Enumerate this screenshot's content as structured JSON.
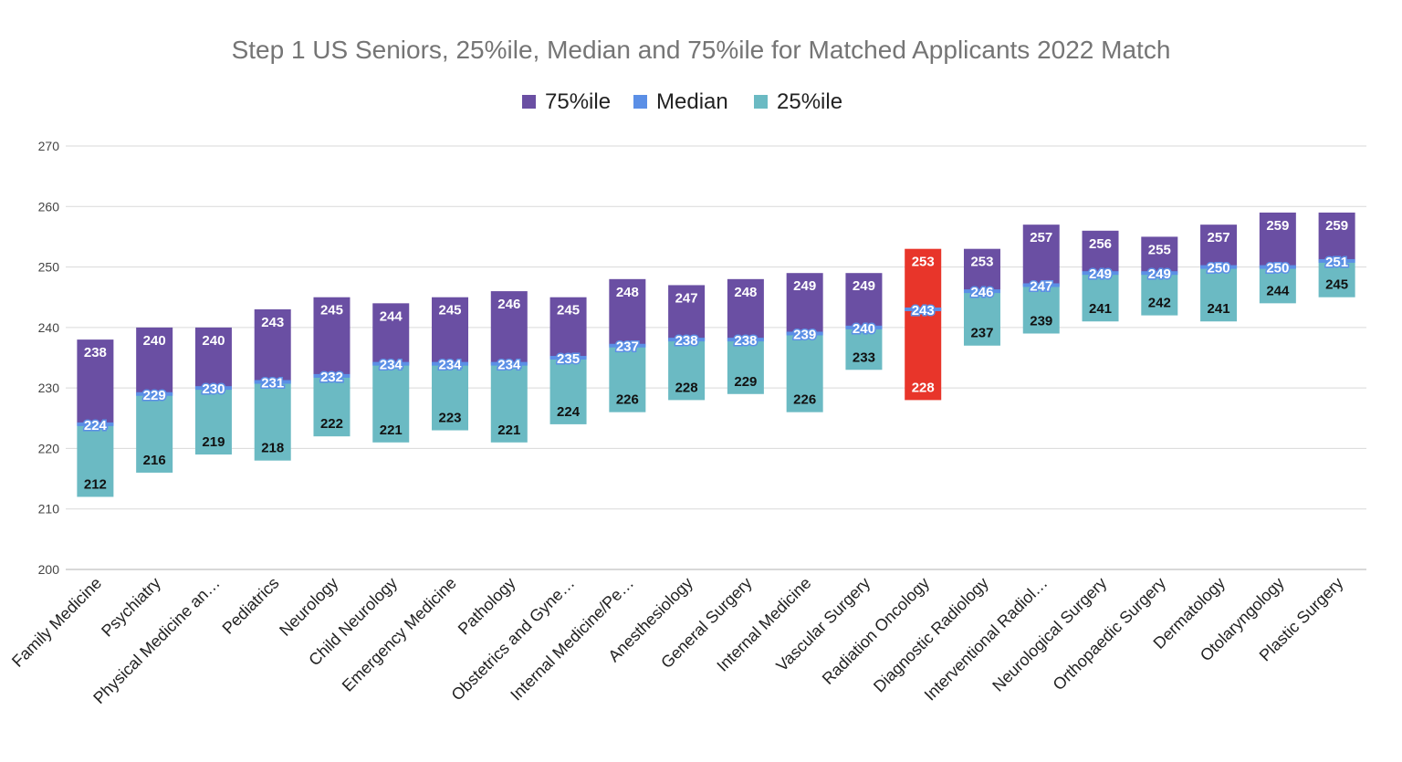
{
  "chart_data": {
    "type": "bar",
    "title": "Step 1 US Seniors, 25%ile, Median and 75%ile for Matched Applicants 2022 Match",
    "legend": [
      {
        "name": "75%ile",
        "color": "#6a4fa3"
      },
      {
        "name": "Median",
        "color": "#5b8fe6"
      },
      {
        "name": "25%ile",
        "color": "#6bbac3"
      }
    ],
    "legend_position": "top-center",
    "ylim": [
      200,
      270
    ],
    "yticks": [
      200,
      210,
      220,
      230,
      240,
      250,
      260,
      270
    ],
    "grid": true,
    "highlight": {
      "category": "Radiation Oncology",
      "color": "#e8352a"
    },
    "categories": [
      "Family Medicine",
      "Psychiatry",
      "Physical Medicine an…",
      "Pediatrics",
      "Neurology",
      "Child Neurology",
      "Emergency Medicine",
      "Pathology",
      "Obstetrics and Gyne…",
      "Internal Medicine/Pe…",
      "Anesthesiology",
      "General Surgery",
      "Internal Medicine",
      "Vascular Surgery",
      "Radiation Oncology",
      "Diagnostic Radiology",
      "Interventional Radiol…",
      "Neurological Surgery",
      "Orthopaedic Surgery",
      "Dermatology",
      "Otolaryngology",
      "Plastic Surgery"
    ],
    "series": [
      {
        "name": "25%ile",
        "values": [
          212,
          216,
          219,
          218,
          222,
          221,
          223,
          221,
          224,
          226,
          228,
          229,
          226,
          233,
          228,
          237,
          239,
          241,
          242,
          241,
          244,
          245
        ]
      },
      {
        "name": "Median",
        "values": [
          224,
          229,
          230,
          231,
          232,
          234,
          234,
          234,
          235,
          237,
          238,
          238,
          239,
          240,
          243,
          246,
          247,
          249,
          249,
          250,
          250,
          251
        ]
      },
      {
        "name": "75%ile",
        "values": [
          238,
          240,
          240,
          243,
          245,
          244,
          245,
          246,
          245,
          248,
          247,
          248,
          249,
          249,
          253,
          253,
          257,
          256,
          255,
          257,
          259,
          259
        ]
      }
    ]
  }
}
